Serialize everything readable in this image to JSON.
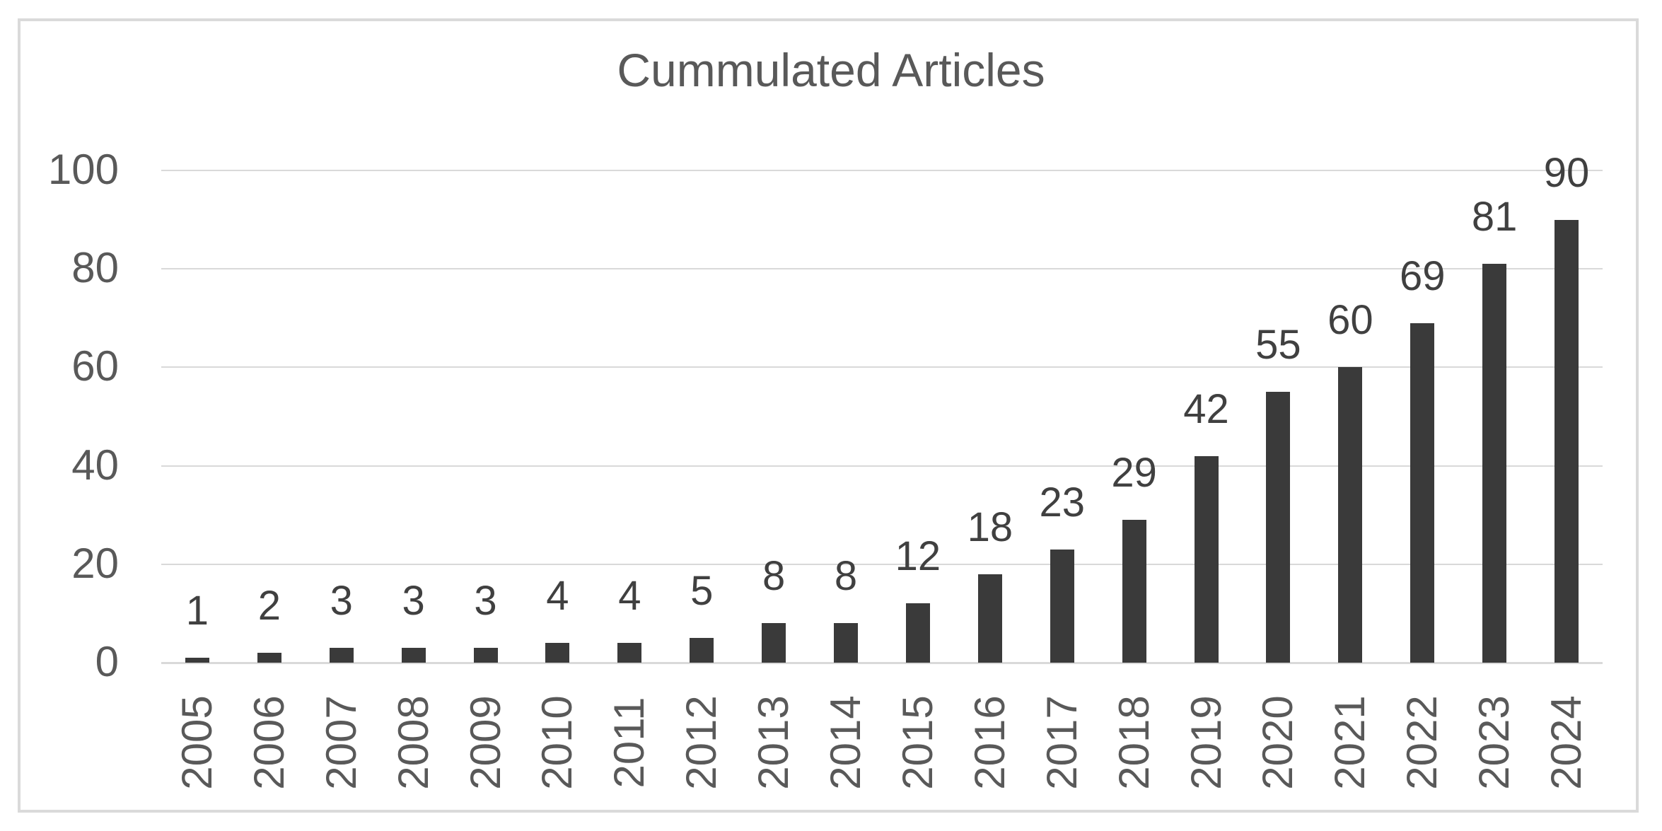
{
  "chart_data": {
    "type": "bar",
    "title": "Cummulated Articles",
    "categories": [
      "2005",
      "2006",
      "2007",
      "2008",
      "2009",
      "2010",
      "2011",
      "2012",
      "2013",
      "2014",
      "2015",
      "2016",
      "2017",
      "2018",
      "2019",
      "2020",
      "2021",
      "2022",
      "2023",
      "2024"
    ],
    "values": [
      1,
      2,
      3,
      3,
      3,
      4,
      4,
      5,
      8,
      8,
      12,
      18,
      23,
      29,
      42,
      55,
      60,
      69,
      81,
      90
    ],
    "xlabel": "",
    "ylabel": "",
    "ylim": [
      0,
      100
    ],
    "yticks": [
      0,
      20,
      40,
      60,
      80,
      100
    ],
    "grid": true,
    "legend": "none",
    "data_labels": "outside-end",
    "bar_color": "#3A3A3A",
    "value_label_color": "#404040",
    "axis_label_color": "#595959",
    "gridline_color": "#D9D9D9",
    "frame_border_color": "#DADADA",
    "background_color": "#FFFFFF"
  }
}
